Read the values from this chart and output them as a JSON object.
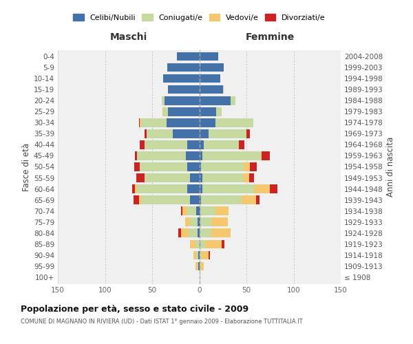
{
  "age_groups": [
    "100+",
    "95-99",
    "90-94",
    "85-89",
    "80-84",
    "75-79",
    "70-74",
    "65-69",
    "60-64",
    "55-59",
    "50-54",
    "45-49",
    "40-44",
    "35-39",
    "30-34",
    "25-29",
    "20-24",
    "15-19",
    "10-14",
    "5-9",
    "0-4"
  ],
  "birth_years": [
    "≤ 1908",
    "1909-1913",
    "1914-1918",
    "1919-1923",
    "1924-1928",
    "1929-1933",
    "1934-1938",
    "1939-1943",
    "1944-1948",
    "1949-1953",
    "1954-1958",
    "1959-1963",
    "1964-1968",
    "1969-1973",
    "1974-1978",
    "1979-1983",
    "1984-1988",
    "1989-1993",
    "1994-1998",
    "1999-2003",
    "2004-2008"
  ],
  "maschi": {
    "celibi": [
      0,
      1,
      1,
      0,
      2,
      2,
      3,
      10,
      13,
      10,
      13,
      14,
      13,
      28,
      35,
      33,
      37,
      33,
      38,
      34,
      24
    ],
    "coniugati": [
      0,
      1,
      2,
      4,
      9,
      8,
      10,
      52,
      53,
      48,
      50,
      52,
      45,
      28,
      27,
      5,
      3,
      0,
      0,
      0,
      0
    ],
    "vedovi": [
      0,
      2,
      3,
      6,
      8,
      5,
      5,
      2,
      2,
      0,
      0,
      0,
      0,
      0,
      1,
      1,
      0,
      0,
      0,
      0,
      0
    ],
    "divorziati": [
      0,
      0,
      0,
      0,
      3,
      0,
      1,
      6,
      3,
      9,
      6,
      2,
      5,
      2,
      1,
      0,
      0,
      0,
      0,
      0,
      0
    ]
  },
  "femmine": {
    "nubili": [
      0,
      0,
      0,
      1,
      0,
      1,
      1,
      2,
      3,
      3,
      2,
      3,
      5,
      10,
      17,
      18,
      33,
      25,
      22,
      26,
      20
    ],
    "coniugate": [
      0,
      1,
      2,
      5,
      13,
      12,
      16,
      43,
      55,
      43,
      45,
      62,
      37,
      40,
      40,
      6,
      5,
      1,
      0,
      0,
      0
    ],
    "vedove": [
      0,
      4,
      8,
      18,
      20,
      17,
      14,
      15,
      17,
      7,
      7,
      1,
      0,
      0,
      0,
      0,
      0,
      0,
      0,
      0,
      0
    ],
    "divorziate": [
      0,
      0,
      1,
      3,
      0,
      0,
      0,
      4,
      8,
      5,
      7,
      9,
      6,
      4,
      0,
      0,
      0,
      0,
      0,
      0,
      0
    ]
  },
  "colors": {
    "celibi": "#4472a8",
    "coniugati": "#c5d9a0",
    "vedovi": "#f5c76e",
    "divorziati": "#cc2222"
  },
  "xlim": 150,
  "title": "Popolazione per età, sesso e stato civile - 2009",
  "subtitle": "COMUNE DI MAGNANO IN RIVIERA (UD) - Dati ISTAT 1° gennaio 2009 - Elaborazione TUTTITALIA.IT",
  "legend_labels": [
    "Celibi/Nubili",
    "Coniugati/e",
    "Vedovi/e",
    "Divorziati/e"
  ],
  "bg_color": "#f0f0f0",
  "grid_color": "#cccccc"
}
